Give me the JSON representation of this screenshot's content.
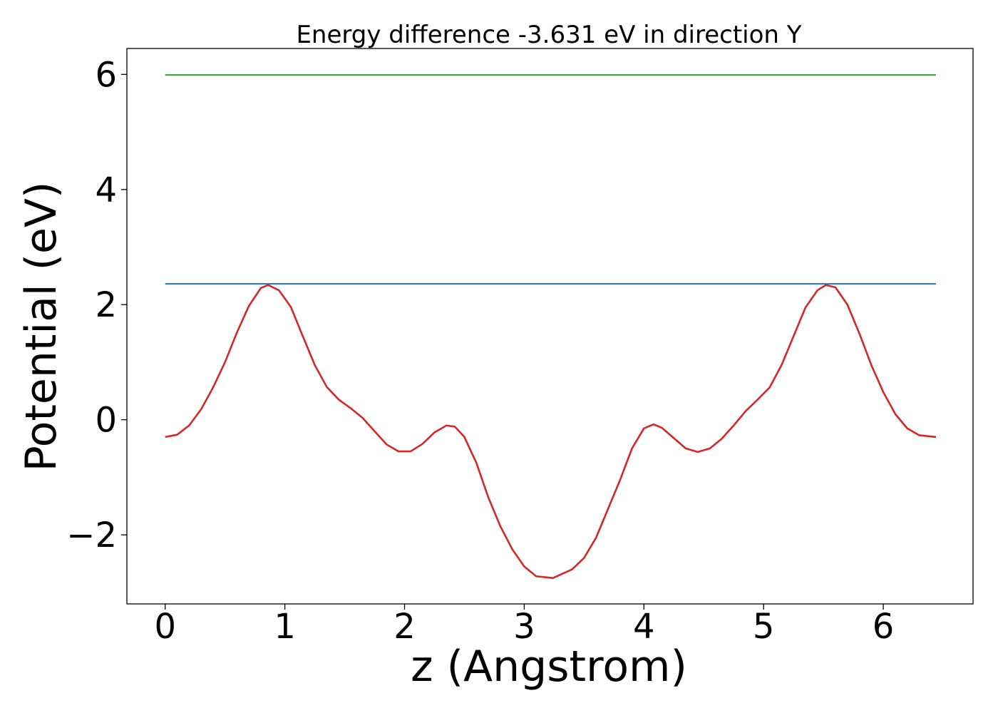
{
  "chart_data": {
    "type": "line",
    "title": "Energy difference -3.631 eV in direction Y",
    "xlabel": "z (Angstrom)",
    "ylabel": "Potential (eV)",
    "xlim": [
      -0.32,
      6.75
    ],
    "ylim": [
      -3.2,
      6.45
    ],
    "x_ticks": [
      0,
      1,
      2,
      3,
      4,
      5,
      6
    ],
    "x_tick_labels": [
      "0",
      "1",
      "2",
      "3",
      "4",
      "5",
      "6"
    ],
    "y_ticks": [
      -2,
      0,
      2,
      4,
      6
    ],
    "y_tick_labels": [
      "−2",
      "0",
      "2",
      "4",
      "6"
    ],
    "grid": false,
    "series": [
      {
        "color": "#2ca02c",
        "x": [
          0,
          6.44
        ],
        "y": [
          5.99,
          5.99
        ]
      },
      {
        "color": "#1f77b4",
        "x": [
          0,
          6.44
        ],
        "y": [
          2.36,
          2.36
        ]
      },
      {
        "color": "#d62728",
        "x": [
          0,
          0.1,
          0.2,
          0.3,
          0.4,
          0.5,
          0.6,
          0.7,
          0.8,
          0.86,
          0.95,
          1.05,
          1.15,
          1.25,
          1.35,
          1.45,
          1.55,
          1.65,
          1.75,
          1.85,
          1.95,
          2.05,
          2.15,
          2.25,
          2.35,
          2.42,
          2.5,
          2.6,
          2.7,
          2.8,
          2.9,
          3.0,
          3.1,
          3.24,
          3.4,
          3.5,
          3.6,
          3.7,
          3.8,
          3.9,
          4.0,
          4.08,
          4.15,
          4.25,
          4.35,
          4.45,
          4.55,
          4.65,
          4.75,
          4.85,
          4.95,
          5.05,
          5.15,
          5.25,
          5.35,
          5.45,
          5.52,
          5.6,
          5.7,
          5.8,
          5.9,
          6.0,
          6.1,
          6.2,
          6.3,
          6.44
        ],
        "y": [
          -0.3,
          -0.26,
          -0.1,
          0.18,
          0.56,
          1.0,
          1.52,
          1.98,
          2.29,
          2.34,
          2.25,
          1.96,
          1.45,
          0.95,
          0.57,
          0.35,
          0.2,
          0.03,
          -0.2,
          -0.43,
          -0.55,
          -0.55,
          -0.42,
          -0.22,
          -0.1,
          -0.12,
          -0.3,
          -0.75,
          -1.35,
          -1.85,
          -2.25,
          -2.55,
          -2.72,
          -2.75,
          -2.6,
          -2.4,
          -2.05,
          -1.55,
          -1.05,
          -0.5,
          -0.15,
          -0.08,
          -0.14,
          -0.32,
          -0.5,
          -0.56,
          -0.5,
          -0.33,
          -0.1,
          0.15,
          0.35,
          0.56,
          0.95,
          1.45,
          1.95,
          2.25,
          2.34,
          2.3,
          2.0,
          1.5,
          0.95,
          0.48,
          0.1,
          -0.15,
          -0.27,
          -0.3
        ]
      }
    ]
  }
}
